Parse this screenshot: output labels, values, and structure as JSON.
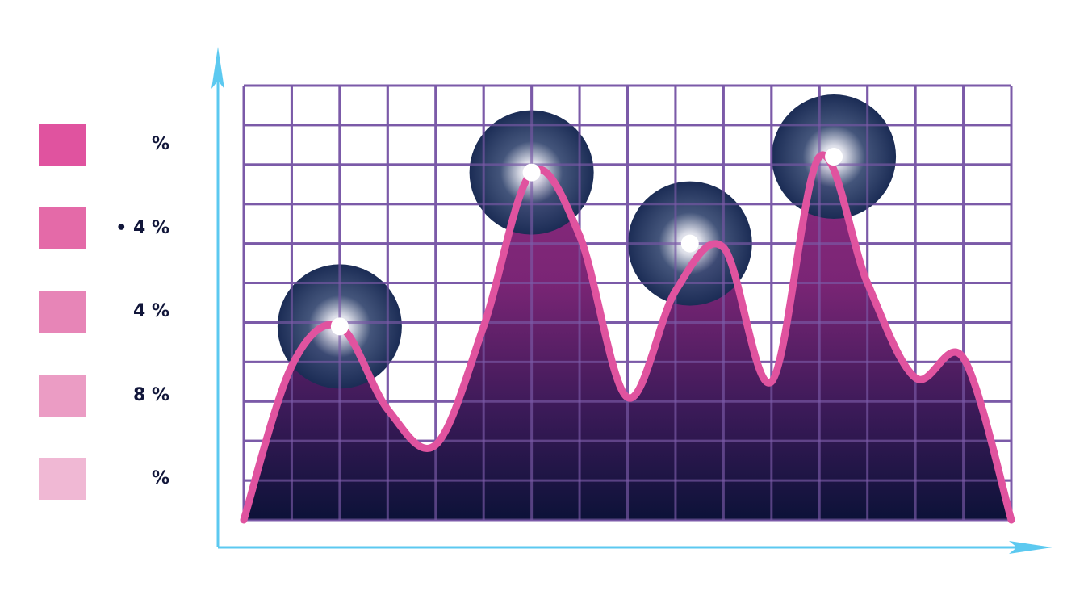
{
  "legend": {
    "items": [
      {
        "label": "%",
        "color": "#e0539f"
      },
      {
        "label": "• 4 %",
        "color": "#e46aa8"
      },
      {
        "label": "4  %",
        "color": "#e785b7"
      },
      {
        "label": "8 %",
        "color": "#eb9cc4"
      },
      {
        "label": "%",
        "color": "#f0b8d4"
      }
    ]
  },
  "chart_data": {
    "type": "area",
    "title": "",
    "xlabel": "",
    "ylabel": "",
    "x": [
      0,
      1,
      2,
      3,
      4,
      5,
      6,
      7,
      8,
      9,
      10,
      11,
      12,
      13,
      14,
      15,
      16
    ],
    "ylim": [
      0,
      11
    ],
    "xlim": [
      0,
      16
    ],
    "grid": true,
    "series": [
      {
        "values": [
          0,
          3.9,
          4.9,
          2.8,
          1.9,
          4.9,
          8.8,
          7.2,
          3.1,
          5.8,
          6.9,
          3.5,
          9.2,
          6.0,
          3.6,
          4.1,
          0
        ]
      }
    ],
    "highlighted_peaks": [
      {
        "x": 2,
        "y": 4.9
      },
      {
        "x": 6,
        "y": 8.8
      },
      {
        "x": 9.3,
        "y": 7.0
      },
      {
        "x": 12.3,
        "y": 9.2
      }
    ],
    "colors": {
      "line": "#e0539f",
      "grid": "#7b5ba8",
      "axis": "#5cc9f0",
      "fill_top": "#8c2a7e",
      "fill_bottom": "#0c1238",
      "glow": "#1b2c55"
    }
  }
}
